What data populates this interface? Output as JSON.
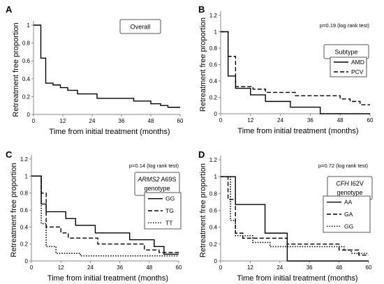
{
  "chart_data": [
    {
      "panel": "A",
      "type": "line",
      "step": true,
      "box_label": [
        "Overall"
      ],
      "xlabel": "Time from initial treatment (months)",
      "ylabel": "Retreatment free proportion",
      "xlim": [
        0,
        60
      ],
      "ylim": [
        0,
        1
      ],
      "xticks": [
        0,
        12,
        24,
        36,
        48,
        60
      ],
      "yticks": [
        0,
        0.2,
        0.4,
        0.6,
        0.8,
        1
      ],
      "series": [
        {
          "style": "solid",
          "points": [
            [
              0,
              1
            ],
            [
              3,
              1
            ],
            [
              3,
              0.63
            ],
            [
              5,
              0.63
            ],
            [
              5,
              0.35
            ],
            [
              8,
              0.35
            ],
            [
              8,
              0.33
            ],
            [
              11,
              0.33
            ],
            [
              11,
              0.3
            ],
            [
              14,
              0.3
            ],
            [
              14,
              0.27
            ],
            [
              18,
              0.27
            ],
            [
              18,
              0.23
            ],
            [
              26,
              0.23
            ],
            [
              26,
              0.18
            ],
            [
              41,
              0.18
            ],
            [
              41,
              0.15
            ],
            [
              48,
              0.15
            ],
            [
              48,
              0.12
            ],
            [
              52,
              0.12
            ],
            [
              52,
              0.1
            ],
            [
              55,
              0.1
            ],
            [
              55,
              0.08
            ],
            [
              60,
              0.08
            ]
          ]
        }
      ]
    },
    {
      "panel": "B",
      "type": "line",
      "step": true,
      "p_text": "p=0.19 (log rank test)",
      "box_label": [
        "Subtype"
      ],
      "legend_position": "right",
      "xlabel": "Time from initial treatment (months)",
      "ylabel": "Retreatment free proportion",
      "xlim": [
        0,
        60
      ],
      "ylim": [
        0,
        1.2
      ],
      "xticks": [
        0,
        12,
        24,
        36,
        48,
        60
      ],
      "yticks": [
        0,
        0.2,
        0.4,
        0.6,
        0.8,
        1,
        1.2
      ],
      "series": [
        {
          "name": "AMD",
          "style": "solid",
          "points": [
            [
              0,
              1
            ],
            [
              3,
              1
            ],
            [
              3,
              0.46
            ],
            [
              6,
              0.46
            ],
            [
              6,
              0.31
            ],
            [
              12,
              0.31
            ],
            [
              12,
              0.23
            ],
            [
              18,
              0.23
            ],
            [
              18,
              0.15
            ],
            [
              28,
              0.15
            ],
            [
              28,
              0.08
            ],
            [
              40,
              0.08
            ],
            [
              40,
              0
            ],
            [
              60,
              0
            ]
          ]
        },
        {
          "name": "PCV",
          "style": "dashed",
          "points": [
            [
              0,
              1
            ],
            [
              3,
              1
            ],
            [
              3,
              0.7
            ],
            [
              6,
              0.7
            ],
            [
              6,
              0.33
            ],
            [
              13,
              0.33
            ],
            [
              13,
              0.3
            ],
            [
              18,
              0.3
            ],
            [
              18,
              0.26
            ],
            [
              30,
              0.26
            ],
            [
              30,
              0.22
            ],
            [
              48,
              0.22
            ],
            [
              48,
              0.18
            ],
            [
              52,
              0.18
            ],
            [
              52,
              0.15
            ],
            [
              56,
              0.15
            ],
            [
              56,
              0.11
            ],
            [
              60,
              0.11
            ]
          ]
        }
      ]
    },
    {
      "panel": "C",
      "type": "line",
      "step": true,
      "p_text": "p=0.14 (log rank test)",
      "box_label": [
        "A69S",
        "genotype"
      ],
      "box_label_gene": "ARMS2",
      "legend_position": "right",
      "xlabel": "Time from initial treatment (months)",
      "ylabel": "Retreatment free proportion",
      "xlim": [
        0,
        60
      ],
      "ylim": [
        0,
        1.2
      ],
      "xticks": [
        0,
        12,
        24,
        36,
        48,
        60
      ],
      "yticks": [
        0,
        0.2,
        0.4,
        0.6,
        0.8,
        1,
        1.2
      ],
      "series": [
        {
          "name": "GG",
          "style": "solid",
          "points": [
            [
              0,
              1
            ],
            [
              4,
              1
            ],
            [
              4,
              0.67
            ],
            [
              6,
              0.67
            ],
            [
              6,
              0.58
            ],
            [
              14,
              0.58
            ],
            [
              14,
              0.5
            ],
            [
              18,
              0.5
            ],
            [
              18,
              0.42
            ],
            [
              26,
              0.42
            ],
            [
              26,
              0.33
            ],
            [
              40,
              0.33
            ],
            [
              40,
              0.25
            ],
            [
              50,
              0.25
            ],
            [
              50,
              0.17
            ],
            [
              54,
              0.17
            ],
            [
              54,
              0.08
            ],
            [
              60,
              0.08
            ]
          ]
        },
        {
          "name": "TG",
          "style": "dashed",
          "points": [
            [
              0,
              1
            ],
            [
              4,
              1
            ],
            [
              4,
              0.8
            ],
            [
              6,
              0.8
            ],
            [
              6,
              0.4
            ],
            [
              12,
              0.4
            ],
            [
              12,
              0.33
            ],
            [
              15,
              0.33
            ],
            [
              15,
              0.27
            ],
            [
              27,
              0.27
            ],
            [
              27,
              0.2
            ],
            [
              46,
              0.2
            ],
            [
              46,
              0.13
            ],
            [
              52,
              0.13
            ],
            [
              52,
              0.1
            ],
            [
              60,
              0.1
            ]
          ]
        },
        {
          "name": "TT",
          "style": "dotted",
          "points": [
            [
              0,
              1
            ],
            [
              4,
              1
            ],
            [
              4,
              0.44
            ],
            [
              6,
              0.44
            ],
            [
              6,
              0.17
            ],
            [
              10,
              0.17
            ],
            [
              10,
              0.09
            ],
            [
              20,
              0.09
            ],
            [
              20,
              0.06
            ],
            [
              60,
              0.06
            ]
          ]
        }
      ]
    },
    {
      "panel": "D",
      "type": "line",
      "step": true,
      "p_text": "p=0.72 (log rank test)",
      "box_label": [
        "I62V",
        "genotype"
      ],
      "box_label_gene": "CFH",
      "legend_position": "right",
      "xlabel": "Time from initial treatment (months)",
      "ylabel": "Retreatment free proportion",
      "xlim": [
        0,
        60
      ],
      "ylim": [
        0,
        1.2
      ],
      "xticks": [
        0,
        12,
        24,
        36,
        48,
        60
      ],
      "yticks": [
        0,
        0.2,
        0.4,
        0.6,
        0.8,
        1,
        1.2
      ],
      "series": [
        {
          "name": "AA",
          "style": "solid",
          "points": [
            [
              0,
              1
            ],
            [
              6,
              1
            ],
            [
              6,
              0.67
            ],
            [
              18,
              0.67
            ],
            [
              18,
              0.33
            ],
            [
              27,
              0.33
            ],
            [
              27,
              0
            ],
            [
              60,
              0
            ]
          ]
        },
        {
          "name": "GA",
          "style": "dashed",
          "points": [
            [
              0,
              1
            ],
            [
              3,
              1
            ],
            [
              3,
              0.73
            ],
            [
              6,
              0.73
            ],
            [
              6,
              0.33
            ],
            [
              9,
              0.33
            ],
            [
              9,
              0.27
            ],
            [
              27,
              0.27
            ],
            [
              27,
              0.2
            ],
            [
              48,
              0.2
            ],
            [
              48,
              0.13
            ],
            [
              56,
              0.13
            ],
            [
              56,
              0.07
            ],
            [
              60,
              0.07
            ]
          ]
        },
        {
          "name": "GG",
          "style": "dotted",
          "points": [
            [
              0,
              1
            ],
            [
              4,
              1
            ],
            [
              4,
              0.48
            ],
            [
              6,
              0.48
            ],
            [
              6,
              0.3
            ],
            [
              13,
              0.3
            ],
            [
              13,
              0.22
            ],
            [
              20,
              0.22
            ],
            [
              20,
              0.17
            ],
            [
              50,
              0.17
            ],
            [
              50,
              0.13
            ],
            [
              53,
              0.13
            ],
            [
              53,
              0.09
            ],
            [
              60,
              0.09
            ]
          ]
        }
      ]
    }
  ]
}
